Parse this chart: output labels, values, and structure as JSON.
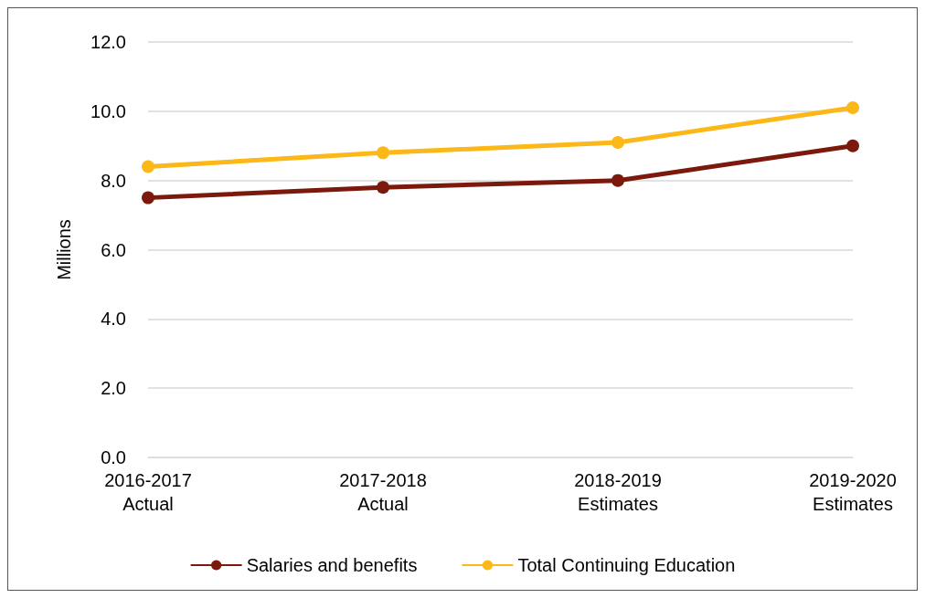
{
  "chart_data": {
    "type": "line",
    "ylabel": "Millions",
    "categories": [
      "2016-2017\nActual",
      "2017-2018\nActual",
      "2018-2019\nEstimates",
      "2019-2020\nEstimates"
    ],
    "series": [
      {
        "name": "Salaries and benefits",
        "color": "#7b1a0c",
        "values": [
          7.5,
          7.8,
          8.0,
          9.0
        ]
      },
      {
        "name": "Total Continuing Education",
        "color": "#fbb818",
        "values": [
          8.4,
          8.8,
          9.1,
          10.1
        ]
      }
    ],
    "ylim": [
      0,
      12
    ],
    "yticks": [
      {
        "value": 0,
        "label": "0.0"
      },
      {
        "value": 2,
        "label": "2.0"
      },
      {
        "value": 4,
        "label": "4.0"
      },
      {
        "value": 6,
        "label": "6.0"
      },
      {
        "value": 8,
        "label": "8.0"
      },
      {
        "value": 10,
        "label": "10.0"
      },
      {
        "value": 12,
        "label": "12.0"
      }
    ],
    "grid": "y",
    "legend": "bottom",
    "marker": "circle",
    "line_style": "solid"
  }
}
